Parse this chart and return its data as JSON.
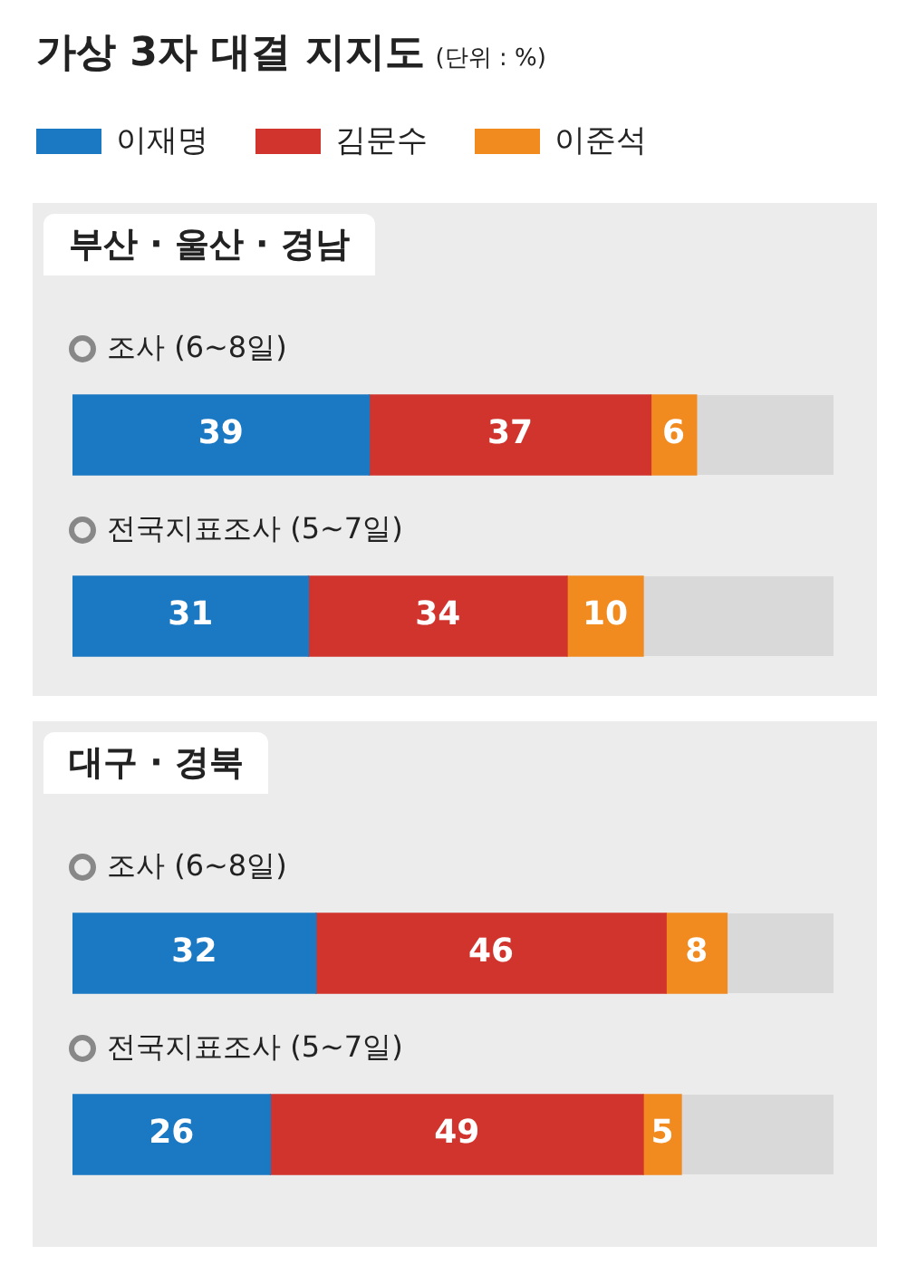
{
  "chart_data": [
    {
      "type": "bar",
      "title": "부산 · 울산 · 경남",
      "annotations": [
        "가상 3자 대결 지지도",
        "(단위 : %)"
      ],
      "orientation": "horizontal",
      "stacked": true,
      "xlim": [
        0,
        100
      ],
      "tick_labels": false,
      "data_labels": true,
      "legend": "top left",
      "categories": [
        "조사 (6~8일)",
        "전국지표조사 (5~7일)"
      ],
      "series": [
        {
          "name": "이재명",
          "color": "#1b78c2",
          "values": [
            39,
            31
          ]
        },
        {
          "name": "김문수",
          "color": "#d1342d",
          "values": [
            37,
            34
          ]
        },
        {
          "name": "이준석",
          "color": "#f18a1f",
          "values": [
            6,
            10
          ]
        }
      ]
    },
    {
      "type": "bar",
      "title": "대구 · 경북",
      "orientation": "horizontal",
      "stacked": true,
      "xlim": [
        0,
        100
      ],
      "tick_labels": false,
      "data_labels": true,
      "categories": [
        "조사 (6~8일)",
        "전국지표조사 (5~7일)"
      ],
      "series": [
        {
          "color": "#1b78c2",
          "values": [
            32,
            26
          ]
        },
        {
          "color": "#d1342d",
          "values": [
            46,
            49
          ]
        },
        {
          "color": "#f18a1f",
          "values": [
            8,
            5
          ]
        }
      ]
    }
  ]
}
